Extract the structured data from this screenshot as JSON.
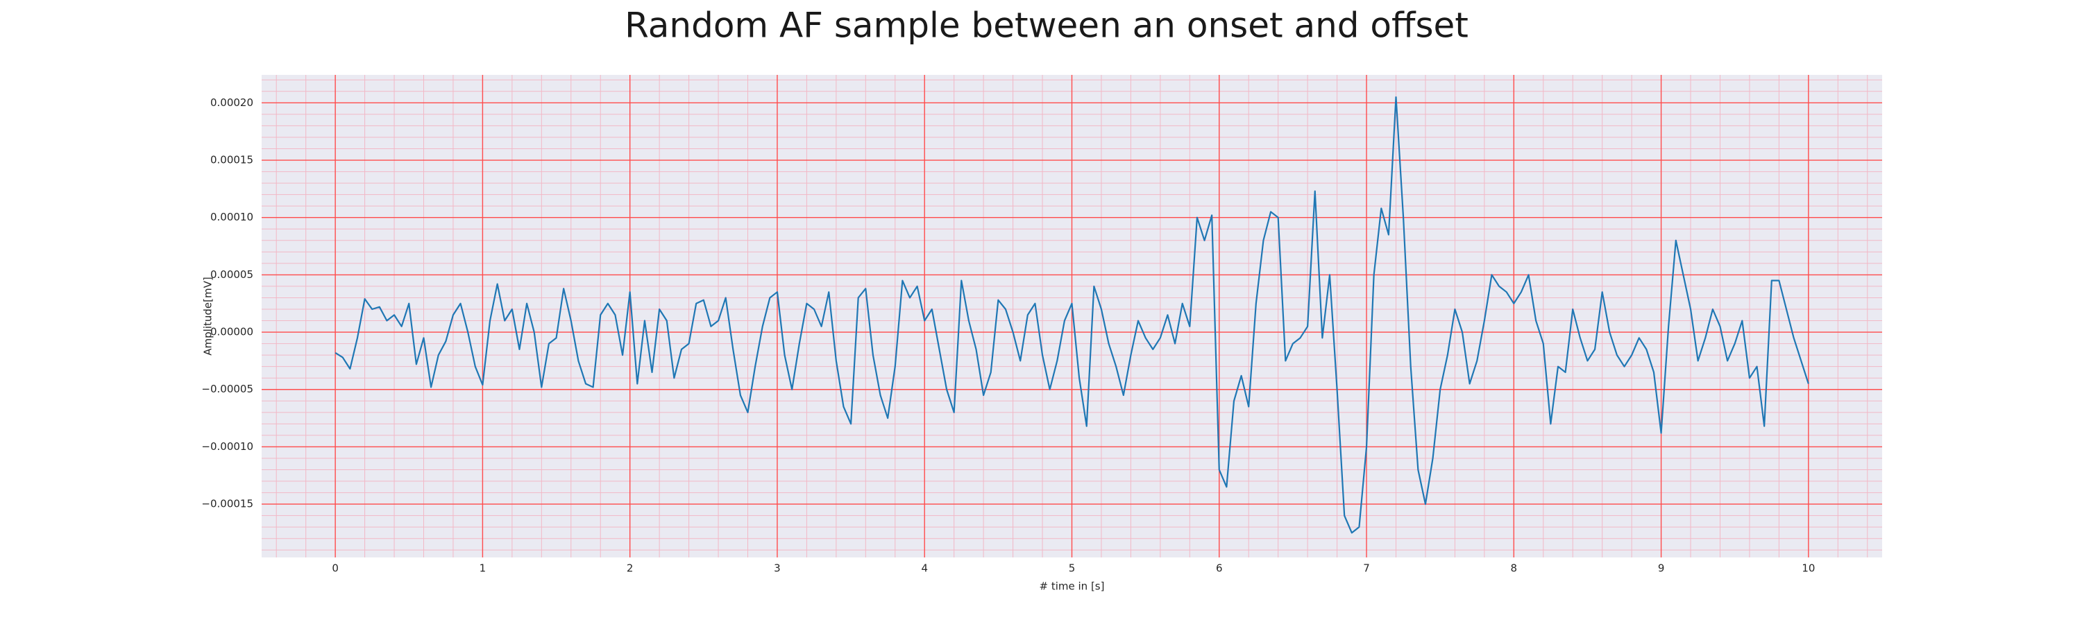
{
  "chart_data": {
    "type": "line",
    "title": "Random AF sample between an onset and offset",
    "xlabel": "# time in [s]",
    "ylabel": "Amplitude[mV]",
    "color": "#1f77b4",
    "grid": true,
    "grid_color": "#ff4d4d",
    "minor_grid_color": "#f2b8c6",
    "background": "#eaeaf2",
    "xlim": [
      -0.5,
      10.5
    ],
    "ylim": [
      -0.0001965,
      0.0002244
    ],
    "xticks": [
      0,
      1,
      2,
      3,
      4,
      5,
      6,
      7,
      8,
      9,
      10
    ],
    "yticks": [
      {
        "value": -0.00015,
        "label": "−0.00015"
      },
      {
        "value": -0.0001,
        "label": "−0.00010"
      },
      {
        "value": -5e-05,
        "label": "−0.00005"
      },
      {
        "value": 0,
        "label": "0.00000"
      },
      {
        "value": 5e-05,
        "label": "0.00005"
      },
      {
        "value": 0.0001,
        "label": "0.00010"
      },
      {
        "value": 0.00015,
        "label": "0.00015"
      },
      {
        "value": 0.0002,
        "label": "0.00020"
      }
    ],
    "xminorticks": [
      -0.4,
      -0.2,
      0,
      0.2,
      0.4,
      0.6,
      0.8,
      1,
      1.2,
      1.4,
      1.6,
      1.8,
      2,
      2.2,
      2.4,
      2.6,
      2.8,
      3,
      3.2,
      3.4,
      3.6,
      3.8,
      4,
      4.2,
      4.4,
      4.6,
      4.8,
      5,
      5.2,
      5.4,
      5.6,
      5.8,
      6,
      6.2,
      6.4,
      6.6,
      6.8,
      7,
      7.2,
      7.4,
      7.6,
      7.8,
      8,
      8.2,
      8.4,
      8.6,
      8.8,
      9,
      9.2,
      9.4,
      9.6,
      9.8,
      10,
      10.2,
      10.4
    ],
    "yminorticks": [
      -0.00019,
      -0.00018,
      -0.00017,
      -0.00016,
      -0.00015,
      -0.00014,
      -0.00013,
      -0.00012,
      -0.00011,
      -0.0001,
      -9e-05,
      -8e-05,
      -7e-05,
      -6e-05,
      -5e-05,
      -4e-05,
      -3e-05,
      -2e-05,
      -1e-05,
      0,
      1e-05,
      2e-05,
      3e-05,
      4e-05,
      5e-05,
      6e-05,
      7e-05,
      8e-05,
      9e-05,
      0.0001,
      0.00011,
      0.00012,
      0.00013,
      0.00014,
      0.00015,
      0.00016,
      0.00017,
      0.00018,
      0.00019,
      0.0002,
      0.00021,
      0.00022
    ],
    "x": [
      0,
      0.05,
      0.1,
      0.15,
      0.2,
      0.25,
      0.3,
      0.35,
      0.4,
      0.45,
      0.5,
      0.55,
      0.6,
      0.65,
      0.7,
      0.75,
      0.8,
      0.85,
      0.9,
      0.95,
      1,
      1.05,
      1.1,
      1.15,
      1.2,
      1.25,
      1.3,
      1.35,
      1.4,
      1.45,
      1.5,
      1.55,
      1.6,
      1.65,
      1.7,
      1.75,
      1.8,
      1.85,
      1.9,
      1.95,
      2,
      2.05,
      2.1,
      2.15,
      2.2,
      2.25,
      2.3,
      2.35,
      2.4,
      2.45,
      2.5,
      2.55,
      2.6,
      2.65,
      2.7,
      2.75,
      2.8,
      2.85,
      2.9,
      2.95,
      3,
      3.05,
      3.1,
      3.15,
      3.2,
      3.25,
      3.3,
      3.35,
      3.4,
      3.45,
      3.5,
      3.55,
      3.6,
      3.65,
      3.7,
      3.75,
      3.8,
      3.85,
      3.9,
      3.95,
      4,
      4.05,
      4.1,
      4.15,
      4.2,
      4.25,
      4.3,
      4.35,
      4.4,
      4.45,
      4.5,
      4.55,
      4.6,
      4.65,
      4.7,
      4.75,
      4.8,
      4.85,
      4.9,
      4.95,
      5,
      5.05,
      5.1,
      5.15,
      5.2,
      5.25,
      5.3,
      5.35,
      5.4,
      5.45,
      5.5,
      5.55,
      5.6,
      5.65,
      5.7,
      5.75,
      5.8,
      5.85,
      5.9,
      5.95,
      6,
      6.05,
      6.1,
      6.15,
      6.2,
      6.25,
      6.3,
      6.35,
      6.4,
      6.45,
      6.5,
      6.55,
      6.6,
      6.65,
      6.7,
      6.75,
      6.8,
      6.85,
      6.9,
      6.95,
      7,
      7.05,
      7.1,
      7.15,
      7.2,
      7.25,
      7.3,
      7.35,
      7.4,
      7.45,
      7.5,
      7.55,
      7.6,
      7.65,
      7.7,
      7.75,
      7.8,
      7.85,
      7.9,
      7.95,
      8,
      8.05,
      8.1,
      8.15,
      8.2,
      8.25,
      8.3,
      8.35,
      8.4,
      8.45,
      8.5,
      8.55,
      8.6,
      8.65,
      8.7,
      8.75,
      8.8,
      8.85,
      8.9,
      8.95,
      9,
      9.05,
      9.1,
      9.15,
      9.2,
      9.25,
      9.3,
      9.35,
      9.4,
      9.45,
      9.5,
      9.55,
      9.6,
      9.65,
      9.7,
      9.75,
      9.8,
      9.85,
      9.9,
      9.95,
      10
    ],
    "values": [
      -1.8e-05,
      -2.2e-05,
      -3.2e-05,
      -5e-06,
      2.9e-05,
      2e-05,
      2.2e-05,
      1e-05,
      1.5e-05,
      5e-06,
      2.5e-05,
      -2.8e-05,
      -5e-06,
      -4.8e-05,
      -2e-05,
      -8e-06,
      1.5e-05,
      2.5e-05,
      0,
      -3e-05,
      -4.6e-05,
      1e-05,
      4.2e-05,
      1e-05,
      2e-05,
      -1.5e-05,
      2.5e-05,
      0,
      -4.8e-05,
      -1e-05,
      -5e-06,
      3.8e-05,
      1e-05,
      -2.5e-05,
      -4.5e-05,
      -4.8e-05,
      1.5e-05,
      2.5e-05,
      1.5e-05,
      -2e-05,
      3.5e-05,
      -4.5e-05,
      1e-05,
      -3.5e-05,
      2e-05,
      1e-05,
      -4e-05,
      -1.5e-05,
      -1e-05,
      2.5e-05,
      2.8e-05,
      5e-06,
      1e-05,
      3e-05,
      -1.5e-05,
      -5.5e-05,
      -7e-05,
      -3e-05,
      5e-06,
      3e-05,
      3.5e-05,
      -2e-05,
      -5e-05,
      -1e-05,
      2.5e-05,
      2e-05,
      5e-06,
      3.5e-05,
      -2.5e-05,
      -6.5e-05,
      -8e-05,
      3e-05,
      3.8e-05,
      -2e-05,
      -5.5e-05,
      -7.5e-05,
      -3e-05,
      4.5e-05,
      3e-05,
      4e-05,
      1e-05,
      2e-05,
      -1.5e-05,
      -5e-05,
      -7e-05,
      4.5e-05,
      1e-05,
      -1.5e-05,
      -5.5e-05,
      -3.5e-05,
      2.8e-05,
      2e-05,
      0,
      -2.5e-05,
      1.5e-05,
      2.5e-05,
      -2e-05,
      -5e-05,
      -2.5e-05,
      1e-05,
      2.5e-05,
      -4e-05,
      -8.2e-05,
      4e-05,
      2e-05,
      -1e-05,
      -3e-05,
      -5.5e-05,
      -2e-05,
      1e-05,
      -5e-06,
      -1.5e-05,
      -5e-06,
      1.5e-05,
      -1e-05,
      2.5e-05,
      5e-06,
      0.0001,
      8e-05,
      0.000102,
      -0.00012,
      -0.000135,
      -6e-05,
      -3.8e-05,
      -6.5e-05,
      2.5e-05,
      8e-05,
      0.000105,
      0.0001,
      -2.5e-05,
      -1e-05,
      -5e-06,
      5e-06,
      0.000123,
      -5e-06,
      5e-05,
      -5e-05,
      -0.00016,
      -0.000175,
      -0.00017,
      -0.0001,
      5e-05,
      0.000108,
      8.5e-05,
      0.000205,
      0.0001,
      -3e-05,
      -0.00012,
      -0.00015,
      -0.00011,
      -5e-05,
      -2e-05,
      2e-05,
      0,
      -4.5e-05,
      -2.5e-05,
      1e-05,
      5e-05,
      4e-05,
      3.5e-05,
      2.5e-05,
      3.5e-05,
      5e-05,
      1e-05,
      -1e-05,
      -8e-05,
      -3e-05,
      -3.5e-05,
      2e-05,
      -5e-06,
      -2.5e-05,
      -1.5e-05,
      3.5e-05,
      0,
      -2e-05,
      -3e-05,
      -2e-05,
      -5e-06,
      -1.5e-05,
      -3.5e-05,
      -8.8e-05,
      5e-06,
      8e-05,
      5e-05,
      2e-05,
      -2.5e-05,
      -5e-06,
      2e-05,
      5e-06,
      -2.5e-05,
      -1e-05,
      1e-05,
      -4e-05,
      -3e-05,
      -8.2e-05,
      4.5e-05,
      4.5e-05,
      2e-05,
      -5e-06,
      -2.5e-05,
      -4.5e-05
    ]
  }
}
